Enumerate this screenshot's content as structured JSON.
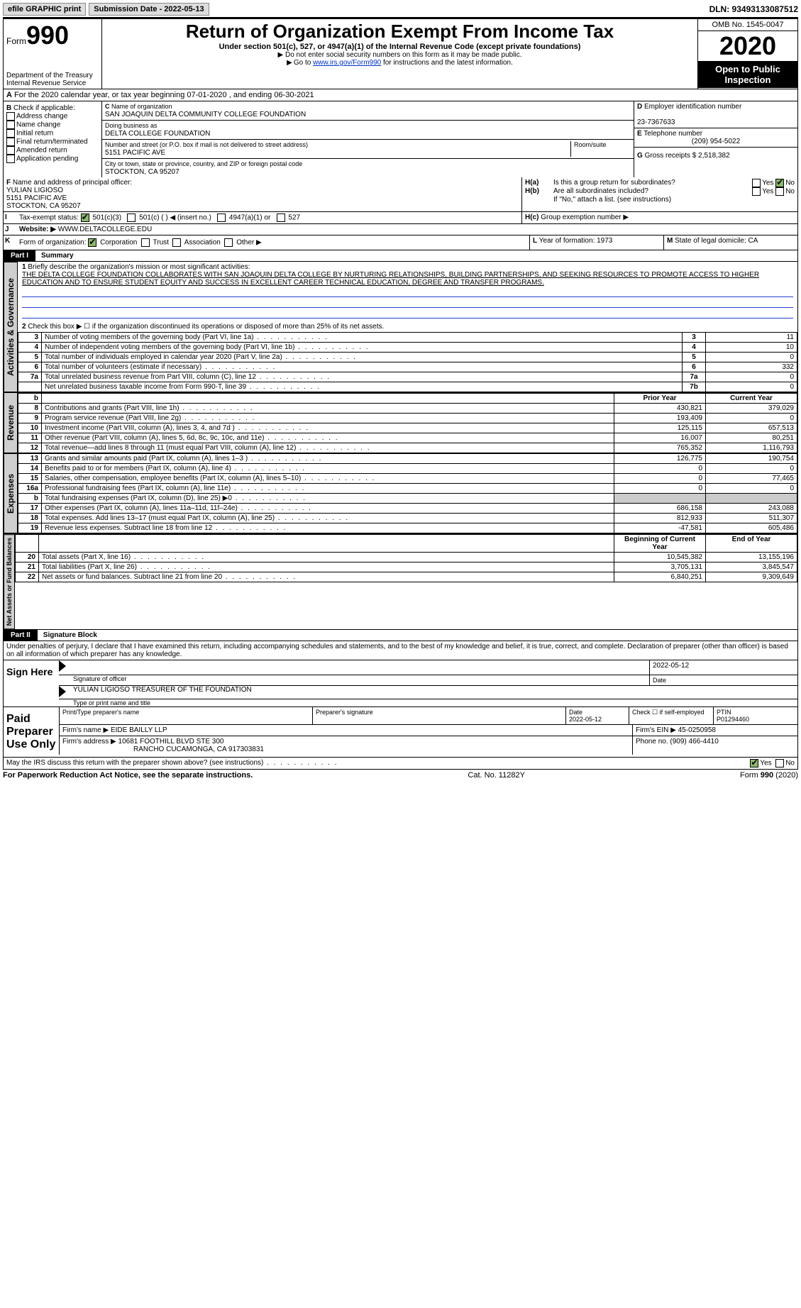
{
  "topbar": {
    "efile": "efile GRAPHIC print",
    "submission": "Submission Date - 2022-05-13",
    "dln": "DLN: 93493133087512"
  },
  "header": {
    "form_label": "Form",
    "form_number": "990",
    "dept": "Department of the Treasury\nInternal Revenue Service",
    "title": "Return of Organization Exempt From Income Tax",
    "subtitle": "Under section 501(c), 527, or 4947(a)(1) of the Internal Revenue Code (except private foundations)",
    "warn1": "Do not enter social security numbers on this form as it may be made public.",
    "warn2_pre": "Go to ",
    "warn2_link": "www.irs.gov/Form990",
    "warn2_post": " for instructions and the latest information.",
    "omb": "OMB No. 1545-0047",
    "year": "2020",
    "open": "Open to Public Inspection"
  },
  "periodA": "For the 2020 calendar year, or tax year beginning 07-01-2020    , and ending 06-30-2021",
  "B": {
    "title": "Check if applicable:",
    "items": [
      "Address change",
      "Name change",
      "Initial return",
      "Final return/terminated",
      "Amended return",
      "Application pending"
    ]
  },
  "C": {
    "label": "Name of organization",
    "name": "SAN JOAQUIN DELTA COMMUNITY COLLEGE FOUNDATION",
    "dba_label": "Doing business as",
    "dba": "DELTA COLLEGE FOUNDATION",
    "addr_label": "Number and street (or P.O. box if mail is not delivered to street address)",
    "addr": "5151 PACIFIC AVE",
    "room": "Room/suite",
    "city_label": "City or town, state or province, country, and ZIP or foreign postal code",
    "city": "STOCKTON, CA  95207"
  },
  "D": {
    "label": "Employer identification number",
    "val": "23-7367633"
  },
  "E": {
    "label": "Telephone number",
    "val": "(209) 954-5022"
  },
  "G": {
    "label": "Gross receipts $",
    "val": "2,518,382"
  },
  "F": {
    "label": "Name and address of principal officer:",
    "name": "YULIAN LIGIOSO",
    "addr1": "5151 PACIFIC AVE",
    "addr2": "STOCKTON, CA 95207"
  },
  "H": {
    "a": "Is this a group return for subordinates?",
    "b": "Are all subordinates included?",
    "bnote": "If \"No,\" attach a list. (see instructions)",
    "c": "Group exemption number ▶"
  },
  "I": {
    "label": "Tax-exempt status:",
    "opts": [
      "501(c)(3)",
      "501(c) (  ) ◀ (insert no.)",
      "4947(a)(1) or",
      "527"
    ]
  },
  "J": {
    "label": "Website: ▶",
    "val": "WWW.DELTACOLLEGE.EDU"
  },
  "K": {
    "label": "Form of organization:",
    "opts": [
      "Corporation",
      "Trust",
      "Association",
      "Other ▶"
    ]
  },
  "L": {
    "label": "Year of formation:",
    "val": "1973"
  },
  "M": {
    "label": "State of legal domicile:",
    "val": "CA"
  },
  "partI": {
    "label": "Part I",
    "title": "Summary",
    "line1": "Briefly describe the organization's mission or most significant activities:",
    "mission": "THE DELTA COLLEGE FOUNDATION COLLABORATES WITH SAN JOAQUIN DELTA COLLEGE BY NURTURING RELATIONSHIPS, BUILDING PARTNERSHIPS, AND SEEKING RESOURCES TO PROMOTE ACCESS TO HIGHER EDUCATION AND TO ENSURE STUDENT EQUITY AND SUCCESS IN EXCELLENT CAREER TECHNICAL EDUCATION, DEGREE AND TRANSFER PROGRAMS.",
    "line2": "Check this box ▶ ☐ if the organization discontinued its operations or disposed of more than 25% of its net assets.",
    "gov_rows": [
      {
        "n": "3",
        "d": "Number of voting members of the governing body (Part VI, line 1a)",
        "c": "3",
        "v": "11"
      },
      {
        "n": "4",
        "d": "Number of independent voting members of the governing body (Part VI, line 1b)",
        "c": "4",
        "v": "10"
      },
      {
        "n": "5",
        "d": "Total number of individuals employed in calendar year 2020 (Part V, line 2a)",
        "c": "5",
        "v": "0"
      },
      {
        "n": "6",
        "d": "Total number of volunteers (estimate if necessary)",
        "c": "6",
        "v": "332"
      },
      {
        "n": "7a",
        "d": "Total unrelated business revenue from Part VIII, column (C), line 12",
        "c": "7a",
        "v": "0"
      },
      {
        "n": "",
        "d": "Net unrelated business taxable income from Form 990-T, line 39",
        "c": "7b",
        "v": "0"
      }
    ],
    "col_prior": "Prior Year",
    "col_current": "Current Year",
    "rev_rows": [
      {
        "n": "8",
        "d": "Contributions and grants (Part VIII, line 1h)",
        "p": "430,821",
        "c": "379,029"
      },
      {
        "n": "9",
        "d": "Program service revenue (Part VIII, line 2g)",
        "p": "193,409",
        "c": "0"
      },
      {
        "n": "10",
        "d": "Investment income (Part VIII, column (A), lines 3, 4, and 7d )",
        "p": "125,115",
        "c": "657,513"
      },
      {
        "n": "11",
        "d": "Other revenue (Part VIII, column (A), lines 5, 6d, 8c, 9c, 10c, and 11e)",
        "p": "16,007",
        "c": "80,251"
      },
      {
        "n": "12",
        "d": "Total revenue—add lines 8 through 11 (must equal Part VIII, column (A), line 12)",
        "p": "765,352",
        "c": "1,116,793"
      }
    ],
    "exp_rows": [
      {
        "n": "13",
        "d": "Grants and similar amounts paid (Part IX, column (A), lines 1–3 )",
        "p": "126,775",
        "c": "190,754"
      },
      {
        "n": "14",
        "d": "Benefits paid to or for members (Part IX, column (A), line 4)",
        "p": "0",
        "c": "0"
      },
      {
        "n": "15",
        "d": "Salaries, other compensation, employee benefits (Part IX, column (A), lines 5–10)",
        "p": "0",
        "c": "77,465"
      },
      {
        "n": "16a",
        "d": "Professional fundraising fees (Part IX, column (A), line 11e)",
        "p": "0",
        "c": "0"
      },
      {
        "n": "b",
        "d": "Total fundraising expenses (Part IX, column (D), line 25) ▶0",
        "p": "",
        "c": ""
      },
      {
        "n": "17",
        "d": "Other expenses (Part IX, column (A), lines 11a–11d, 11f–24e)",
        "p": "686,158",
        "c": "243,088"
      },
      {
        "n": "18",
        "d": "Total expenses. Add lines 13–17 (must equal Part IX, column (A), line 25)",
        "p": "812,933",
        "c": "511,307"
      },
      {
        "n": "19",
        "d": "Revenue less expenses. Subtract line 18 from line 12",
        "p": "-47,581",
        "c": "605,486"
      }
    ],
    "col_begin": "Beginning of Current Year",
    "col_end": "End of Year",
    "net_rows": [
      {
        "n": "20",
        "d": "Total assets (Part X, line 16)",
        "p": "10,545,382",
        "c": "13,155,196"
      },
      {
        "n": "21",
        "d": "Total liabilities (Part X, line 26)",
        "p": "3,705,131",
        "c": "3,845,547"
      },
      {
        "n": "22",
        "d": "Net assets or fund balances. Subtract line 21 from line 20",
        "p": "6,840,251",
        "c": "9,309,649"
      }
    ],
    "vtabs": {
      "gov": "Activities & Governance",
      "rev": "Revenue",
      "exp": "Expenses",
      "net": "Net Assets or Fund Balances"
    },
    "b_label": "b"
  },
  "partII": {
    "label": "Part II",
    "title": "Signature Block",
    "perjury": "Under penalties of perjury, I declare that I have examined this return, including accompanying schedules and statements, and to the best of my knowledge and belief, it is true, correct, and complete. Declaration of preparer (other than officer) is based on all information of which preparer has any knowledge.",
    "sign_here": "Sign Here",
    "sig_officer": "Signature of officer",
    "sig_date": "Date",
    "sig_date_val": "2022-05-12",
    "sig_name_title": "YULIAN LIGIOSO  TREASURER OF THE FOUNDATION",
    "sig_type": "Type or print name and title",
    "paid": "Paid Preparer Use Only",
    "prep_name": "Print/Type preparer's name",
    "prep_sig": "Preparer's signature",
    "prep_date": "Date",
    "prep_date_val": "2022-05-12",
    "prep_check": "Check ☐ if self-employed",
    "ptin_label": "PTIN",
    "ptin": "P01294460",
    "firm_name_label": "Firm's name    ▶",
    "firm_name": "EIDE BAILLY LLP",
    "firm_ein_label": "Firm's EIN ▶",
    "firm_ein": "45-0250958",
    "firm_addr_label": "Firm's address ▶",
    "firm_addr1": "10681 FOOTHILL BLVD STE 300",
    "firm_addr2": "RANCHO CUCAMONGA, CA  917303831",
    "phone_label": "Phone no.",
    "phone": "(909) 466-4410",
    "discuss": "May the IRS discuss this return with the preparer shown above? (see instructions)"
  },
  "footer": {
    "left": "For Paperwork Reduction Act Notice, see the separate instructions.",
    "mid": "Cat. No. 11282Y",
    "right_pre": "Form ",
    "right_bold": "990",
    "right_post": " (2020)"
  },
  "yes": "Yes",
  "no": "No",
  "letters": {
    "A": "A",
    "B": "B",
    "C": "C",
    "D": "D",
    "E": "E",
    "F": "F",
    "G": "G",
    "H(a)": "H(a)",
    "H(b)": "H(b)",
    "H(c)": "H(c)",
    "I": "I",
    "J": "J",
    "K": "K",
    "L": "L",
    "M": "M"
  }
}
